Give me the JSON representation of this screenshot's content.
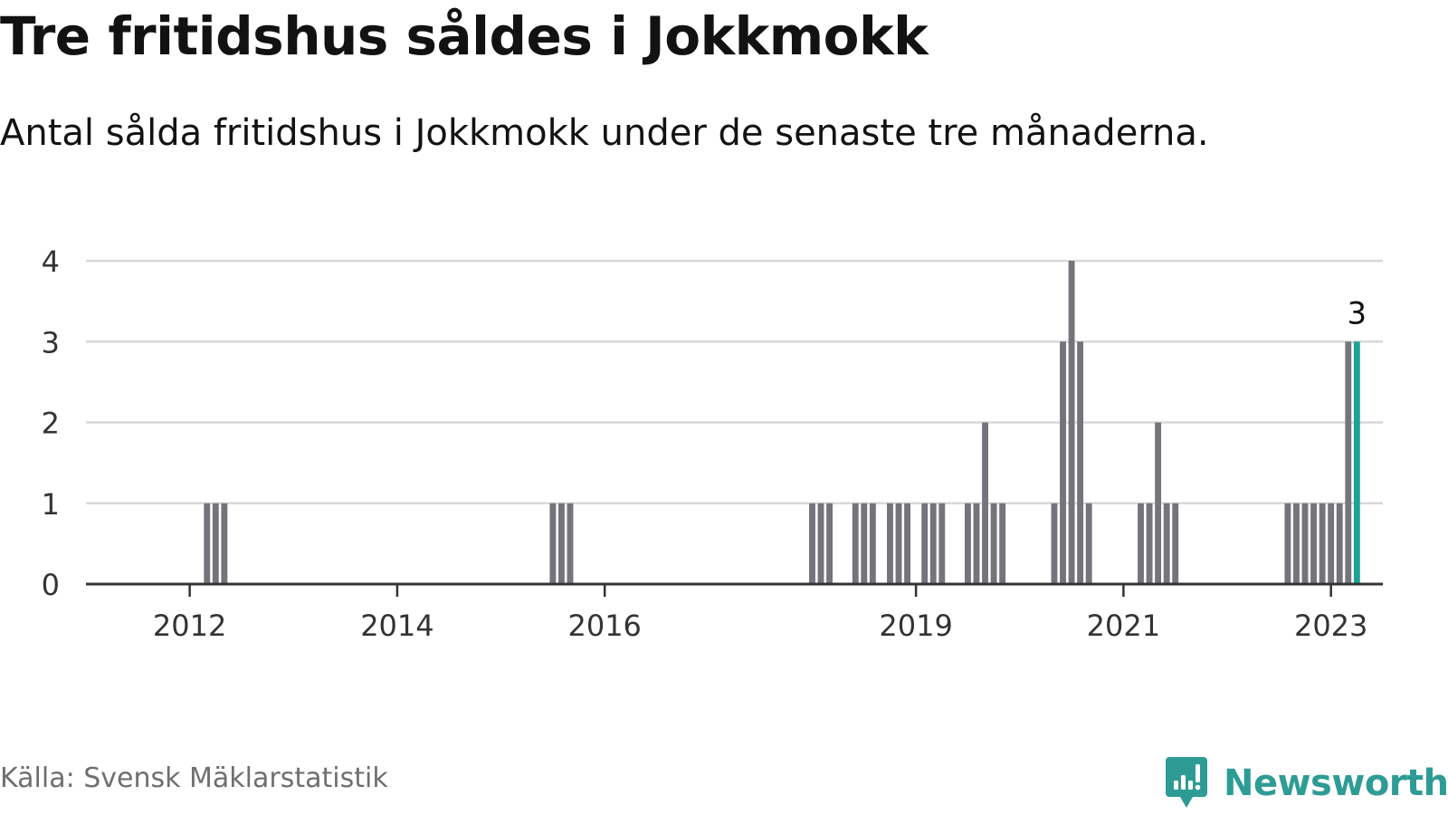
{
  "title": "Tre fritidshus såldes i Jokkmokk",
  "subtitle": "Antal sålda fritidshus i Jokkmokk under de senaste tre månaderna.",
  "source": "Källa: Svensk Mäklarstatistik",
  "brand": {
    "name": "Newsworthy",
    "color": "#2e9c95",
    "icon": "newsworthy-logo-icon"
  },
  "colors": {
    "bar": "#75747a",
    "highlight": "#1aa396",
    "grid": "#d9d9d9",
    "axis": "#333333"
  },
  "chart_data": {
    "type": "bar",
    "x_unit": "month",
    "xlim": [
      "2011-01",
      "2023-07"
    ],
    "ylim": [
      0,
      4
    ],
    "y_ticks": [
      "0",
      "1",
      "2",
      "3",
      "4"
    ],
    "x_ticks": [
      {
        "label": "2012",
        "date": "2012-01"
      },
      {
        "label": "2014",
        "date": "2014-01"
      },
      {
        "label": "2016",
        "date": "2016-01"
      },
      {
        "label": "2019",
        "date": "2019-01"
      },
      {
        "label": "2021",
        "date": "2021-01"
      },
      {
        "label": "2023",
        "date": "2023-01"
      }
    ],
    "grid": true,
    "legend": false,
    "highlight_label": "3",
    "bars": [
      {
        "date": "2012-03",
        "value": 1
      },
      {
        "date": "2012-04",
        "value": 1
      },
      {
        "date": "2012-05",
        "value": 1
      },
      {
        "date": "2015-07",
        "value": 1
      },
      {
        "date": "2015-08",
        "value": 1
      },
      {
        "date": "2015-09",
        "value": 1
      },
      {
        "date": "2018-01",
        "value": 1
      },
      {
        "date": "2018-02",
        "value": 1
      },
      {
        "date": "2018-03",
        "value": 1
      },
      {
        "date": "2018-06",
        "value": 1
      },
      {
        "date": "2018-07",
        "value": 1
      },
      {
        "date": "2018-08",
        "value": 1
      },
      {
        "date": "2018-10",
        "value": 1
      },
      {
        "date": "2018-11",
        "value": 1
      },
      {
        "date": "2018-12",
        "value": 1
      },
      {
        "date": "2019-02",
        "value": 1
      },
      {
        "date": "2019-03",
        "value": 1
      },
      {
        "date": "2019-04",
        "value": 1
      },
      {
        "date": "2019-07",
        "value": 1
      },
      {
        "date": "2019-08",
        "value": 1
      },
      {
        "date": "2019-09",
        "value": 2
      },
      {
        "date": "2019-10",
        "value": 1
      },
      {
        "date": "2019-11",
        "value": 1
      },
      {
        "date": "2020-05",
        "value": 1
      },
      {
        "date": "2020-06",
        "value": 3
      },
      {
        "date": "2020-07",
        "value": 4
      },
      {
        "date": "2020-08",
        "value": 3
      },
      {
        "date": "2020-09",
        "value": 1
      },
      {
        "date": "2021-03",
        "value": 1
      },
      {
        "date": "2021-04",
        "value": 1
      },
      {
        "date": "2021-05",
        "value": 2
      },
      {
        "date": "2021-06",
        "value": 1
      },
      {
        "date": "2021-07",
        "value": 1
      },
      {
        "date": "2022-08",
        "value": 1
      },
      {
        "date": "2022-09",
        "value": 1
      },
      {
        "date": "2022-10",
        "value": 1
      },
      {
        "date": "2022-11",
        "value": 1
      },
      {
        "date": "2022-12",
        "value": 1
      },
      {
        "date": "2023-01",
        "value": 1
      },
      {
        "date": "2023-02",
        "value": 1
      },
      {
        "date": "2023-03",
        "value": 3
      },
      {
        "date": "2023-04",
        "value": 3,
        "highlight": true
      }
    ]
  }
}
